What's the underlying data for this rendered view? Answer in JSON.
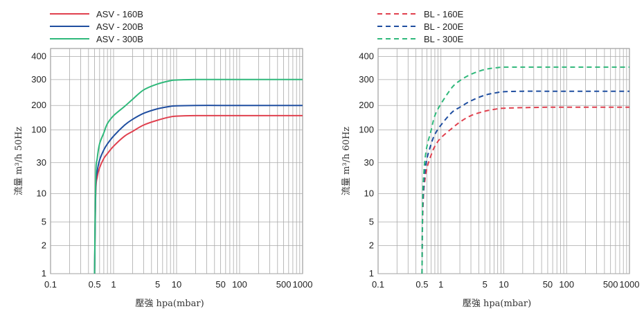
{
  "chart_data": [
    {
      "type": "line",
      "xscale": "log",
      "yscale": "custom-log",
      "xlabel": "壓強 hpa(mbar)",
      "ylabel": "流量 m³/h 50Hz",
      "x_ticks": [
        0.1,
        0.5,
        1,
        5,
        10,
        50,
        100,
        500,
        1000
      ],
      "y_ticks": [
        1,
        2,
        5,
        10,
        30,
        100,
        200,
        300,
        400
      ],
      "xlim": [
        0.1,
        1000
      ],
      "ylim": [
        1,
        400
      ],
      "grid": true,
      "legend": "top-left",
      "line_style": "solid",
      "series": [
        {
          "name": "ASV - 160B",
          "color": "#e0404e",
          "x": [
            0.5,
            0.52,
            0.55,
            0.6,
            0.7,
            0.8,
            1,
            1.5,
            2,
            3,
            5,
            8,
            10,
            20,
            50,
            100,
            1000
          ],
          "y": [
            1,
            10,
            18,
            25,
            35,
            42,
            55,
            80,
            95,
            115,
            132,
            145,
            148,
            150,
            150,
            150,
            150
          ]
        },
        {
          "name": "ASV - 200B",
          "color": "#1f4ea0",
          "x": [
            0.5,
            0.52,
            0.55,
            0.6,
            0.7,
            0.8,
            1,
            1.5,
            2,
            3,
            5,
            8,
            10,
            20,
            50,
            100,
            1000
          ],
          "y": [
            1,
            12,
            22,
            33,
            48,
            60,
            80,
            115,
            135,
            160,
            182,
            195,
            198,
            200,
            200,
            200,
            200
          ]
        },
        {
          "name": "ASV - 300B",
          "color": "#2fb87a",
          "x": [
            0.5,
            0.52,
            0.55,
            0.6,
            0.7,
            0.8,
            1,
            1.5,
            2,
            3,
            5,
            8,
            10,
            20,
            50,
            100,
            1000
          ],
          "y": [
            1,
            18,
            35,
            60,
            90,
            120,
            150,
            195,
            220,
            255,
            280,
            295,
            298,
            300,
            300,
            300,
            300
          ]
        }
      ]
    },
    {
      "type": "line",
      "xscale": "log",
      "yscale": "custom-log",
      "xlabel": "壓強 hpa(mbar)",
      "ylabel": "流量 m³/h 60Hz",
      "x_ticks": [
        0.1,
        0.5,
        1,
        5,
        10,
        50,
        100,
        500,
        1000
      ],
      "y_ticks": [
        1,
        2,
        5,
        10,
        30,
        100,
        200,
        300,
        400
      ],
      "xlim": [
        0.1,
        1000
      ],
      "ylim": [
        1,
        400
      ],
      "grid": true,
      "legend": "top-left",
      "line_style": "dashed",
      "series": [
        {
          "name": "BL - 160E",
          "color": "#e0404e",
          "x": [
            0.5,
            0.51,
            0.53,
            0.55,
            0.6,
            0.7,
            0.8,
            1,
            1.5,
            2,
            3,
            5,
            8,
            10,
            20,
            50,
            100,
            1000
          ],
          "y": [
            1,
            5,
            10,
            15,
            25,
            40,
            55,
            75,
            105,
            125,
            150,
            170,
            182,
            185,
            188,
            190,
            190,
            190
          ]
        },
        {
          "name": "BL - 200E",
          "color": "#1f4ea0",
          "x": [
            0.5,
            0.51,
            0.53,
            0.55,
            0.6,
            0.7,
            0.8,
            1,
            1.5,
            2,
            3,
            5,
            8,
            10,
            20,
            50,
            100,
            1000
          ],
          "y": [
            1,
            6,
            12,
            20,
            35,
            60,
            85,
            115,
            165,
            190,
            215,
            235,
            245,
            248,
            250,
            250,
            250,
            250
          ]
        },
        {
          "name": "BL - 300E",
          "color": "#2fb87a",
          "x": [
            0.5,
            0.51,
            0.53,
            0.55,
            0.6,
            0.7,
            0.8,
            1,
            1.5,
            2,
            3,
            5,
            8,
            10,
            20,
            50,
            100,
            1000
          ],
          "y": [
            1,
            8,
            18,
            30,
            55,
            100,
            150,
            205,
            265,
            295,
            320,
            340,
            348,
            350,
            350,
            350,
            350,
            350
          ]
        }
      ]
    }
  ]
}
